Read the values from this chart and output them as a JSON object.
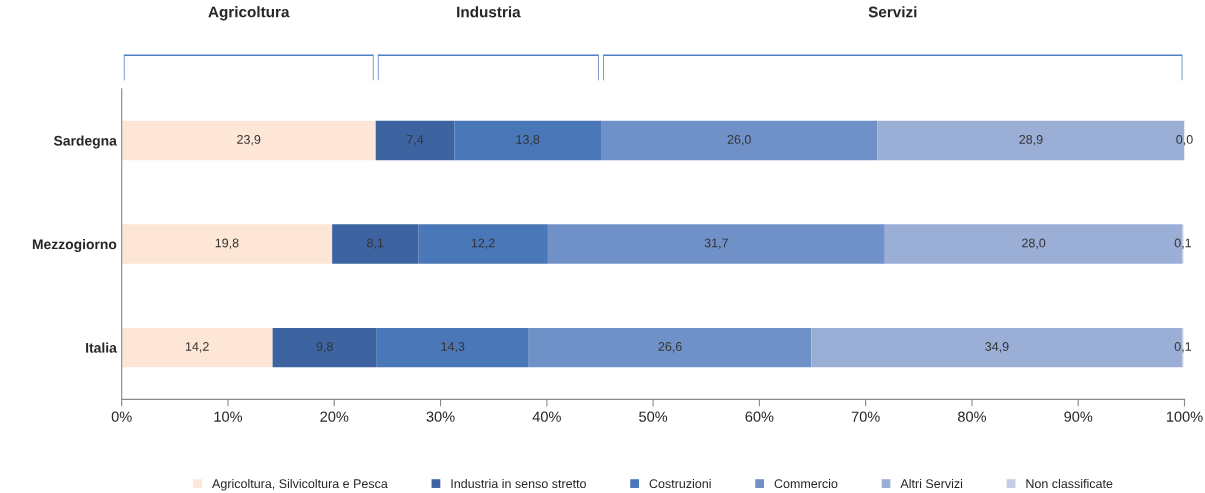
{
  "chart_data": {
    "type": "bar",
    "orientation": "horizontal",
    "stacked": true,
    "categories": [
      "Sardegna",
      "Mezzogiorno",
      "Italia"
    ],
    "series": [
      {
        "name": "Agricoltura, Silvicoltura e Pesca",
        "color": "#fde6d6",
        "values": [
          23.9,
          19.8,
          14.2
        ],
        "value_labels": [
          "23,9",
          "19,8",
          "14,2"
        ]
      },
      {
        "name": "Industria in senso stretto",
        "color": "#3d64a0",
        "values": [
          7.4,
          8.1,
          9.8
        ],
        "value_labels": [
          "7,4",
          "8,1",
          "9,8"
        ]
      },
      {
        "name": "Costruzioni",
        "color": "#4a77b8",
        "values": [
          13.8,
          12.2,
          14.3
        ],
        "value_labels": [
          "13,8",
          "12,2",
          "14,3"
        ]
      },
      {
        "name": "Commercio",
        "color": "#7090c8",
        "values": [
          26.0,
          31.7,
          26.6
        ],
        "value_labels": [
          "26,0",
          "31,7",
          "26,6"
        ]
      },
      {
        "name": "Altri Servizi",
        "color": "#9aaed6",
        "values": [
          28.9,
          28.0,
          34.9
        ],
        "value_labels": [
          "28,9",
          "28,0",
          "34,9"
        ]
      },
      {
        "name": "Non classificate",
        "color": "#c4cde8",
        "values": [
          0.0,
          0.1,
          0.1
        ],
        "value_labels": [
          "0,0",
          "0,1",
          "0,1"
        ]
      }
    ],
    "xlim": [
      0,
      100
    ],
    "xticks": [
      {
        "value": 0,
        "label": "0%"
      },
      {
        "value": 10,
        "label": "10%"
      },
      {
        "value": 20,
        "label": "20%"
      },
      {
        "value": 30,
        "label": "30%"
      },
      {
        "value": 40,
        "label": "40%"
      },
      {
        "value": 50,
        "label": "50%"
      },
      {
        "value": 60,
        "label": "60%"
      },
      {
        "value": 70,
        "label": "70%"
      },
      {
        "value": 80,
        "label": "80%"
      },
      {
        "value": 90,
        "label": "90%"
      },
      {
        "value": 100,
        "label": "100%"
      }
    ],
    "annotations": [
      "Agricoltura",
      "Industria",
      "Servizi"
    ],
    "legend": "bottom",
    "grid": false
  }
}
